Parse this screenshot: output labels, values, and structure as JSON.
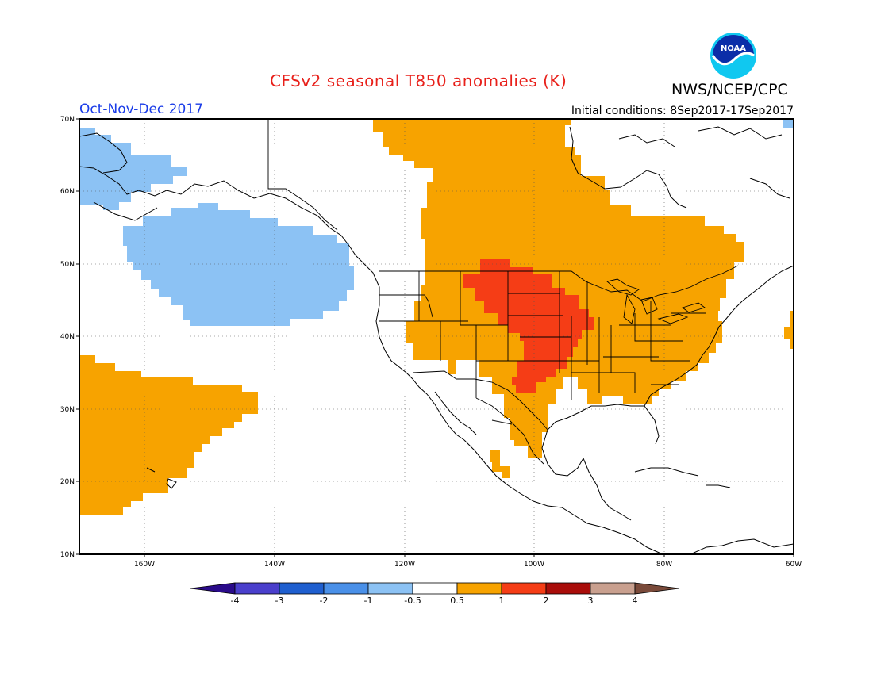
{
  "header": {
    "title": "CFSv2 seasonal T850 anomalies (K)",
    "title_color": "#e8201a",
    "period": "Oct-Nov-Dec 2017",
    "period_color": "#1a3ce8",
    "initial_conditions": "Initial conditions: 8Sep2017-17Sep2017",
    "org": "NWS/NCEP/CPC",
    "logo_text": "NOAA"
  },
  "map": {
    "lat_labels": [
      "70N",
      "60N",
      "50N",
      "40N",
      "30N",
      "20N",
      "10N"
    ],
    "lon_labels": [
      "160W",
      "140W",
      "120W",
      "100W",
      "80W",
      "60W"
    ],
    "features": [
      "coastlines",
      "country-borders",
      "us-state-borders",
      "lat-lon-gridlines"
    ]
  },
  "legend": {
    "labels": [
      "-4",
      "-3",
      "-2",
      "-1",
      "-0.5",
      "0.5",
      "1",
      "2",
      "3",
      "4"
    ],
    "colors": [
      "#2a0b8a",
      "#4a3fcc",
      "#1f5fcf",
      "#4a90e8",
      "#8cc2f4",
      "#ffffff",
      "#f7a300",
      "#f53d16",
      "#a90d0a",
      "#c9a08f",
      "#7a4a3a"
    ]
  },
  "colors": {
    "anomaly_orange": "#f7a300",
    "anomaly_red": "#f53d16",
    "anomaly_lightblue": "#8cc2f4"
  }
}
